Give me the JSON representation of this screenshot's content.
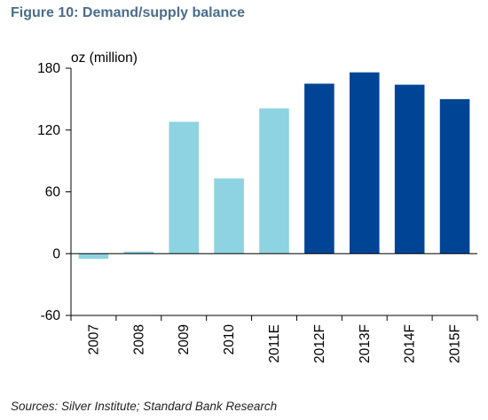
{
  "figure_title": "Figure 10: Demand/supply balance",
  "source": "Sources: Silver Institute; Standard Bank Research",
  "chart_data": {
    "type": "bar",
    "title": "Figure 10: Demand/supply balance",
    "ylabel": "oz (million)",
    "xlabel": "",
    "ylim": [
      -60,
      180
    ],
    "yticks": [
      -60,
      0,
      60,
      120,
      180
    ],
    "grid": false,
    "legend": "none",
    "categories": [
      "2007",
      "2008",
      "2009",
      "2010",
      "2011E",
      "2012F",
      "2013F",
      "2014F",
      "2015F"
    ],
    "values": [
      -5,
      2,
      128,
      73,
      141,
      165,
      176,
      164,
      150
    ],
    "bar_types": [
      "actual",
      "actual",
      "actual",
      "actual",
      "actual",
      "forecast",
      "forecast",
      "forecast",
      "forecast"
    ],
    "colors": {
      "actual": "#8dd3e1",
      "forecast": "#004595"
    }
  }
}
